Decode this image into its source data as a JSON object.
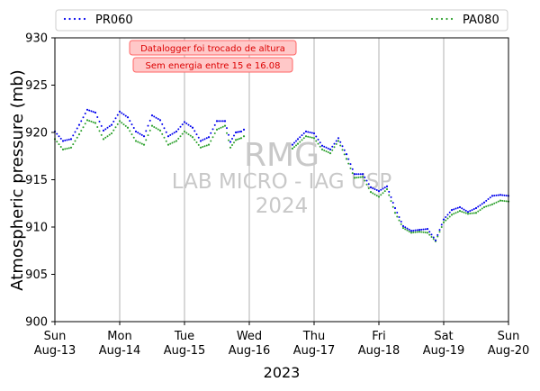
{
  "chart_data": {
    "type": "scatter",
    "xlabel": "2023",
    "ylabel": "Atmospheric pressure (mb)",
    "ylim": [
      900,
      930
    ],
    "xlim": [
      "2023-08-13",
      "2023-08-20"
    ],
    "yticks": [
      900,
      905,
      910,
      915,
      920,
      925,
      930
    ],
    "xticks": [
      {
        "date": "2023-08-13",
        "line1": "Sun",
        "line2": "Aug-13"
      },
      {
        "date": "2023-08-14",
        "line1": "Mon",
        "line2": "Aug-14"
      },
      {
        "date": "2023-08-15",
        "line1": "Tue",
        "line2": "Aug-15"
      },
      {
        "date": "2023-08-16",
        "line1": "Wed",
        "line2": "Aug-16"
      },
      {
        "date": "2023-08-17",
        "line1": "Thu",
        "line2": "Aug-17"
      },
      {
        "date": "2023-08-18",
        "line1": "Fri",
        "line2": "Aug-18"
      },
      {
        "date": "2023-08-19",
        "line1": "Sat",
        "line2": "Aug-19"
      },
      {
        "date": "2023-08-20",
        "line1": "Sun",
        "line2": "Aug-20"
      }
    ],
    "grid": "x-only",
    "legend_position": "top",
    "series": [
      {
        "name": "PR060",
        "color": "#0000ee",
        "x": [
          "2023-08-13 00:00",
          "2023-08-13 03:00",
          "2023-08-13 06:00",
          "2023-08-13 09:00",
          "2023-08-13 12:00",
          "2023-08-13 15:00",
          "2023-08-13 18:00",
          "2023-08-13 21:00",
          "2023-08-14 00:00",
          "2023-08-14 03:00",
          "2023-08-14 06:00",
          "2023-08-14 09:00",
          "2023-08-14 12:00",
          "2023-08-14 15:00",
          "2023-08-14 18:00",
          "2023-08-14 21:00",
          "2023-08-15 00:00",
          "2023-08-15 03:00",
          "2023-08-15 06:00",
          "2023-08-15 09:00",
          "2023-08-15 12:00",
          "2023-08-15 15:00",
          "2023-08-15 17:00",
          "2023-08-15 19:00",
          "2023-08-15 21:00",
          "2023-08-15 22:00",
          "2023-08-16 16:00",
          "2023-08-16 18:00",
          "2023-08-16 21:00",
          "2023-08-17 00:00",
          "2023-08-17 03:00",
          "2023-08-17 06:00",
          "2023-08-17 09:00",
          "2023-08-17 12:00",
          "2023-08-17 15:00",
          "2023-08-17 18:00",
          "2023-08-17 21:00",
          "2023-08-18 00:00",
          "2023-08-18 03:00",
          "2023-08-18 06:00",
          "2023-08-18 09:00",
          "2023-08-18 12:00",
          "2023-08-18 15:00",
          "2023-08-18 18:00",
          "2023-08-18 21:00",
          "2023-08-19 00:00",
          "2023-08-19 03:00",
          "2023-08-19 06:00",
          "2023-08-19 09:00",
          "2023-08-19 12:00",
          "2023-08-19 15:00",
          "2023-08-19 18:00",
          "2023-08-19 21:00",
          "2023-08-20 00:00"
        ],
        "y": [
          920.1,
          919.1,
          919.3,
          920.8,
          922.4,
          922.1,
          920.2,
          920.8,
          922.2,
          921.6,
          920.1,
          919.6,
          921.8,
          921.3,
          919.6,
          920.1,
          921.1,
          920.5,
          919.1,
          919.5,
          921.2,
          921.2,
          919.0,
          920.0,
          920.1,
          920.3,
          918.7,
          919.3,
          920.1,
          919.9,
          918.6,
          918.2,
          919.4,
          917.7,
          915.6,
          915.6,
          914.2,
          913.8,
          914.3,
          912.0,
          910.1,
          909.6,
          909.7,
          909.8,
          908.6,
          910.8,
          911.8,
          912.1,
          911.6,
          912.0,
          912.6,
          913.3,
          913.4,
          913.3
        ],
        "marker": "dot"
      },
      {
        "name": "PA080",
        "color": "#2ca02c",
        "x": [
          "2023-08-13 00:00",
          "2023-08-13 03:00",
          "2023-08-13 06:00",
          "2023-08-13 09:00",
          "2023-08-13 12:00",
          "2023-08-13 15:00",
          "2023-08-13 18:00",
          "2023-08-13 21:00",
          "2023-08-14 00:00",
          "2023-08-14 03:00",
          "2023-08-14 06:00",
          "2023-08-14 09:00",
          "2023-08-14 12:00",
          "2023-08-14 15:00",
          "2023-08-14 18:00",
          "2023-08-14 21:00",
          "2023-08-15 00:00",
          "2023-08-15 03:00",
          "2023-08-15 06:00",
          "2023-08-15 09:00",
          "2023-08-15 12:00",
          "2023-08-15 15:00",
          "2023-08-15 17:00",
          "2023-08-15 19:00",
          "2023-08-15 21:00",
          "2023-08-15 22:00",
          "2023-08-16 16:00",
          "2023-08-16 18:00",
          "2023-08-16 21:00",
          "2023-08-17 00:00",
          "2023-08-17 03:00",
          "2023-08-17 06:00",
          "2023-08-17 09:00",
          "2023-08-17 12:00",
          "2023-08-17 15:00",
          "2023-08-17 18:00",
          "2023-08-17 21:00",
          "2023-08-18 00:00",
          "2023-08-18 03:00",
          "2023-08-18 06:00",
          "2023-08-18 09:00",
          "2023-08-18 12:00",
          "2023-08-18 15:00",
          "2023-08-18 18:00",
          "2023-08-18 21:00",
          "2023-08-19 00:00",
          "2023-08-19 03:00",
          "2023-08-19 06:00",
          "2023-08-19 09:00",
          "2023-08-19 12:00",
          "2023-08-19 15:00",
          "2023-08-19 18:00",
          "2023-08-19 21:00",
          "2023-08-20 00:00"
        ],
        "y": [
          919.3,
          918.2,
          918.4,
          919.8,
          921.3,
          921.0,
          919.3,
          919.9,
          921.2,
          920.5,
          919.1,
          918.7,
          920.7,
          920.2,
          918.7,
          919.1,
          920.1,
          919.5,
          918.4,
          918.7,
          920.3,
          920.7,
          918.4,
          919.2,
          919.4,
          919.6,
          918.3,
          918.8,
          919.6,
          919.4,
          918.2,
          917.8,
          919.1,
          917.2,
          915.2,
          915.3,
          913.7,
          913.2,
          914.0,
          911.5,
          909.9,
          909.4,
          909.5,
          909.4,
          908.5,
          910.5,
          911.3,
          911.7,
          911.4,
          911.5,
          912.1,
          912.4,
          912.8,
          912.7
        ],
        "marker": "dot"
      }
    ],
    "annotations": [
      {
        "text": "Datalogger foi trocado de altura"
      },
      {
        "text": "Sem energia entre 15 e 16.08"
      }
    ],
    "watermark": [
      "RMG",
      "LAB MICRO - IAG USP",
      "2024"
    ]
  }
}
